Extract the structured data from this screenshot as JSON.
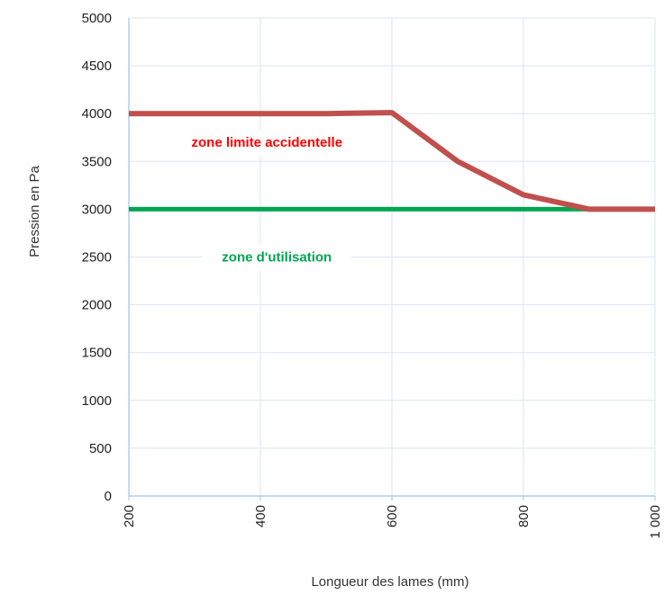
{
  "chart_data": {
    "type": "line",
    "xlabel": "Longueur des lames (mm)",
    "ylabel": "Pression en Pa",
    "xlim": [
      200,
      1000
    ],
    "ylim": [
      0,
      5000
    ],
    "x_ticks": [
      "200",
      "400",
      "600",
      "800",
      "1 000"
    ],
    "x_tick_values": [
      200,
      400,
      600,
      800,
      1000
    ],
    "y_ticks": [
      "0",
      "500",
      "1000",
      "1500",
      "2000",
      "2500",
      "3000",
      "3500",
      "4000",
      "4500",
      "5000"
    ],
    "y_tick_values": [
      0,
      500,
      1000,
      1500,
      2000,
      2500,
      3000,
      3500,
      4000,
      4500,
      5000
    ],
    "grid": true,
    "series": [
      {
        "color": "#c0504d",
        "x": [
          200,
          300,
          400,
          500,
          600,
          700,
          800,
          900,
          1000
        ],
        "y": [
          4000,
          4000,
          4000,
          4000,
          4010,
          3500,
          3150,
          3000,
          3000
        ]
      },
      {
        "color": "#00a651",
        "x": [
          200,
          1000
        ],
        "y": [
          3000,
          3000
        ]
      }
    ],
    "annotations": [
      {
        "text": "zone limite accidentelle",
        "x": 410,
        "y": 3700,
        "color": "#ff0000"
      },
      {
        "text": "zone d'utilisation",
        "x": 425,
        "y": 2500,
        "color": "#00a651"
      }
    ]
  }
}
